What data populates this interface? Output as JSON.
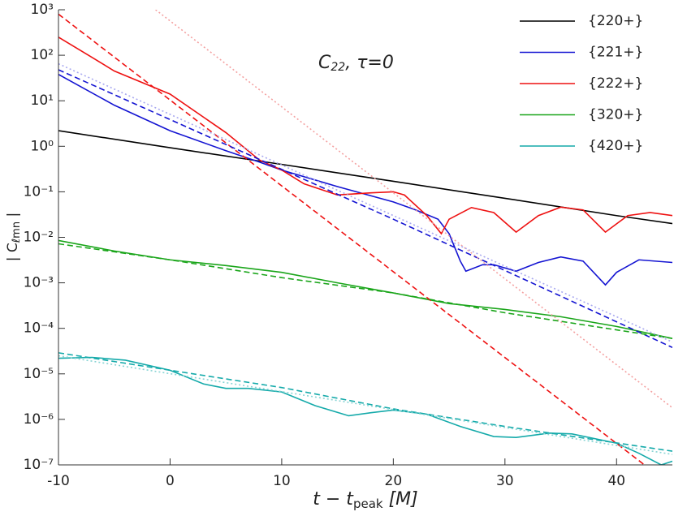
{
  "chart_data": {
    "type": "line",
    "annotation": [
      "C",
      "22",
      ", τ=0"
    ],
    "xlabel": [
      "t − t",
      "peak",
      " [M]"
    ],
    "ylabel": [
      "| C",
      "ℓmn",
      " |"
    ],
    "xlim": [
      -10,
      45
    ],
    "xticks": [
      -10,
      0,
      10,
      20,
      30,
      40
    ],
    "ylim": [
      1e-07,
      1000
    ],
    "ylog": true,
    "yticks": [
      {
        "value": 1000,
        "label": "10³"
      },
      {
        "value": 100,
        "label": "10²"
      },
      {
        "value": 10,
        "label": "10¹"
      },
      {
        "value": 1,
        "label": "10⁰"
      },
      {
        "value": 0.1,
        "label": "10⁻¹"
      },
      {
        "value": 0.01,
        "label": "10⁻²"
      },
      {
        "value": 0.001,
        "label": "10⁻³"
      },
      {
        "value": 0.0001,
        "label": "10⁻⁴"
      },
      {
        "value": 1e-05,
        "label": "10⁻⁵"
      },
      {
        "value": 1e-06,
        "label": "10⁻⁶"
      },
      {
        "value": 1e-07,
        "label": "10⁻⁷"
      }
    ],
    "legend": "upper right",
    "series": [
      {
        "name": "{220+}",
        "color": "#000000",
        "dash": "solid",
        "x": [
          -10,
          0,
          10,
          20,
          30,
          40,
          45
        ],
        "values": [
          2.2,
          0.93,
          0.4,
          0.17,
          0.072,
          0.03,
          0.02
        ]
      },
      {
        "name": "{221+}",
        "color": "#1414d2",
        "dash": "solid",
        "x": [
          -10,
          -5,
          0,
          5,
          8,
          10,
          15,
          20,
          22,
          24,
          25,
          26,
          26.5,
          28,
          29,
          31,
          33,
          35,
          37,
          39,
          40,
          42,
          45
        ],
        "values": [
          38,
          8,
          2.2,
          0.8,
          0.45,
          0.3,
          0.13,
          0.06,
          0.04,
          0.025,
          0.012,
          0.003,
          0.0018,
          0.0025,
          0.0025,
          0.0018,
          0.0028,
          0.0037,
          0.003,
          0.0009,
          0.0017,
          0.0032,
          0.0028
        ]
      },
      {
        "name": "{222+}",
        "color": "#ee1111",
        "dash": "solid",
        "x": [
          -10,
          -7,
          -5,
          0,
          5,
          8,
          10,
          12,
          15,
          18,
          20,
          21,
          23,
          24.3,
          25,
          27,
          29,
          31,
          33,
          35,
          37,
          39,
          41,
          43,
          45
        ],
        "values": [
          250,
          90,
          45,
          14,
          2,
          0.5,
          0.3,
          0.15,
          0.085,
          0.095,
          0.1,
          0.085,
          0.03,
          0.012,
          0.025,
          0.045,
          0.035,
          0.013,
          0.03,
          0.046,
          0.04,
          0.013,
          0.03,
          0.035,
          0.03
        ]
      },
      {
        "name": "{320+}",
        "color": "#1aa51a",
        "dash": "solid",
        "x": [
          -10,
          -5,
          0,
          5,
          10,
          15,
          20,
          25,
          30,
          35,
          40,
          45
        ],
        "values": [
          0.0085,
          0.005,
          0.0032,
          0.0024,
          0.0017,
          0.001,
          0.0006,
          0.00035,
          0.00026,
          0.00018,
          0.00011,
          6e-05
        ]
      },
      {
        "name": "{420+}",
        "color": "#15aaaa",
        "dash": "solid",
        "x": [
          -10,
          -7,
          -4,
          0,
          3,
          5,
          7,
          10,
          13,
          16,
          18,
          20,
          23,
          26,
          29,
          31,
          34,
          36,
          40,
          42,
          44,
          45
        ],
        "values": [
          2.2e-05,
          2.3e-05,
          2e-05,
          1.2e-05,
          6e-06,
          4.8e-06,
          4.8e-06,
          4e-06,
          2e-06,
          1.2e-06,
          1.4e-06,
          1.6e-06,
          1.3e-06,
          7e-07,
          4.2e-07,
          4e-07,
          5e-07,
          4.8e-07,
          3e-07,
          1.8e-07,
          1e-07,
          1.2e-07
        ]
      },
      {
        "color": "#ee1111",
        "dash": "dashed",
        "x": [
          -10,
          10,
          42.5
        ],
        "values": [
          800,
          0.135,
          1e-07
        ]
      },
      {
        "color": "#1414d2",
        "dash": "dashed",
        "x": [
          -10,
          20,
          45
        ],
        "values": [
          48,
          0.025,
          3.8e-05
        ]
      },
      {
        "color": "#1aa51a",
        "dash": "dashed",
        "x": [
          -10,
          0,
          10,
          20,
          30,
          45
        ],
        "values": [
          0.0072,
          0.0032,
          0.0013,
          0.0006,
          0.00022,
          6e-05
        ]
      },
      {
        "color": "#15aaaa",
        "dash": "dashed",
        "x": [
          -10,
          0,
          10,
          20,
          30,
          45
        ],
        "values": [
          2.9e-05,
          1.2e-05,
          5e-06,
          1.7e-06,
          7e-07,
          2e-07
        ]
      },
      {
        "color": "#f4a0a0",
        "dash": "dotted",
        "x": [
          -1.3,
          45
        ],
        "values": [
          1000,
          1.8e-06
        ]
      },
      {
        "color": "#a8a8f0",
        "dash": "dotted",
        "x": [
          -10,
          45
        ],
        "values": [
          65,
          5e-05
        ]
      },
      {
        "color": "#88d4d4",
        "dash": "dotted",
        "x": [
          -10,
          45
        ],
        "values": [
          2.5e-05,
          1.7e-07
        ]
      }
    ]
  }
}
